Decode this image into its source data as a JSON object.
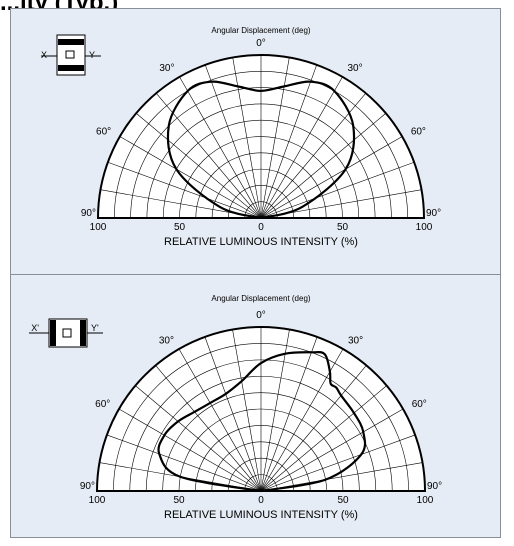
{
  "page_title": "...ity (Typ.)",
  "chart_data": [
    {
      "type": "polar",
      "title": "Angular Displacement (deg)",
      "xlabel": "RELATIVE LUMINOUS INTENSITY  (%)",
      "package_labels": [
        "X",
        "Y"
      ],
      "angle_labels": [
        "0°",
        "30°",
        "30°",
        "60°",
        "60°",
        "90°",
        "90°"
      ],
      "radial_tick_labels": [
        "100",
        "50",
        "0",
        "50",
        "100"
      ],
      "radial_range": [
        0,
        100
      ],
      "angle_range": [
        -90,
        90
      ],
      "series": [
        {
          "angles": [
            -90,
            -75,
            -60,
            -45,
            -30,
            -20,
            -10,
            0,
            10,
            20,
            30,
            45,
            60,
            75,
            90
          ],
          "values": [
            0,
            26,
            60,
            80,
            90,
            89,
            82,
            78,
            82,
            89,
            90,
            80,
            60,
            26,
            0
          ]
        }
      ]
    },
    {
      "type": "polar",
      "title": "Angular Displacement (deg)",
      "xlabel": "RELATIVE LUMINOUS INTENSITY  (%)",
      "package_labels": [
        "X'",
        "Y'"
      ],
      "angle_labels": [
        "0°",
        "30°",
        "30°",
        "60°",
        "60°",
        "90°",
        "90°"
      ],
      "radial_tick_labels": [
        "100",
        "50",
        "0",
        "50",
        "100"
      ],
      "radial_range": [
        0,
        100
      ],
      "angle_range": [
        -90,
        90
      ],
      "series": [
        {
          "angles": [
            -90,
            -80,
            -70,
            -60,
            -50,
            -40,
            -30,
            -20,
            -10,
            0,
            10,
            20,
            25,
            30,
            33,
            36,
            40,
            50,
            60,
            70,
            80,
            90
          ],
          "values": [
            0,
            50,
            66,
            68,
            66,
            63,
            62,
            63,
            68,
            78,
            85,
            90,
            92,
            84,
            78,
            78,
            76,
            74,
            72,
            65,
            40,
            0
          ]
        }
      ]
    }
  ]
}
